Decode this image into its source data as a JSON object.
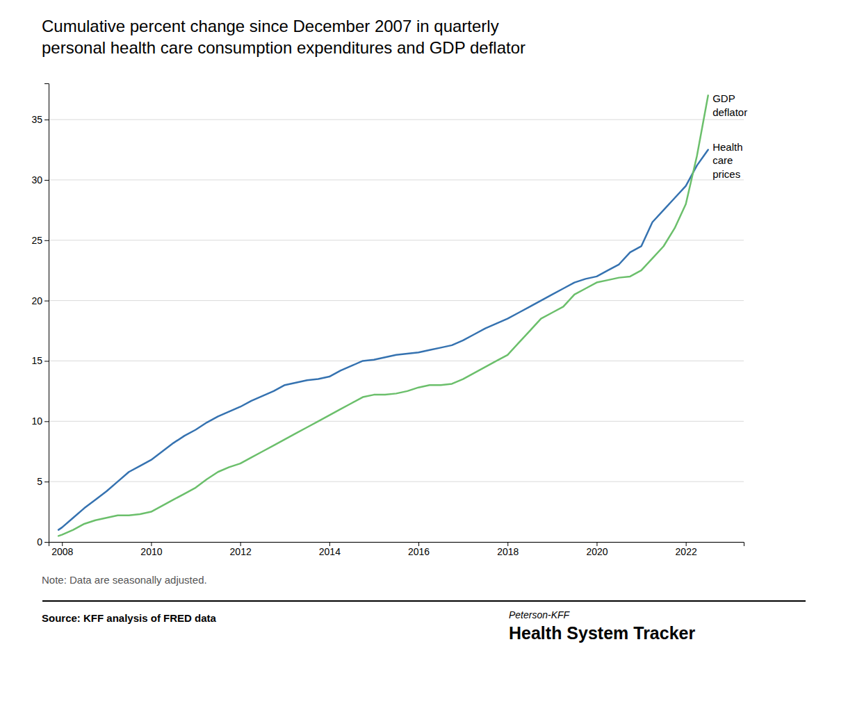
{
  "chart_data": {
    "type": "line",
    "title": "Cumulative percent change since December 2007 in quarterly\npersonal health care consumption expenditures and GDP deflator",
    "note": "Note: Data are seasonally adjusted.",
    "source": "Source: KFF analysis of FRED data",
    "branding": [
      "Peterson-KFF",
      "Health System Tracker"
    ],
    "annotations": [
      {
        "text": "GDP\ndeflator",
        "x": 2022.6,
        "y": 37.2
      },
      {
        "text": "Health\ncare\nprices",
        "x": 2022.6,
        "y": 33.2
      }
    ],
    "xlim": [
      2007.7,
      2023.3
    ],
    "xticks": [
      2008,
      2010,
      2012,
      2014,
      2016,
      2018,
      2020,
      2022
    ],
    "ylim": [
      0,
      38
    ],
    "yticks": [
      0,
      5,
      10,
      15,
      20,
      25,
      30,
      35
    ],
    "grid": true,
    "x": [
      2007.92,
      2008.0,
      2008.25,
      2008.5,
      2008.75,
      2009.0,
      2009.25,
      2009.5,
      2009.75,
      2010.0,
      2010.25,
      2010.5,
      2010.75,
      2011.0,
      2011.25,
      2011.5,
      2011.75,
      2012.0,
      2012.25,
      2012.5,
      2012.75,
      2013.0,
      2013.25,
      2013.5,
      2013.75,
      2014.0,
      2014.25,
      2014.5,
      2014.75,
      2015.0,
      2015.25,
      2015.5,
      2015.75,
      2016.0,
      2016.25,
      2016.5,
      2016.75,
      2017.0,
      2017.25,
      2017.5,
      2017.75,
      2018.0,
      2018.25,
      2018.5,
      2018.75,
      2019.0,
      2019.25,
      2019.5,
      2019.75,
      2020.0,
      2020.25,
      2020.5,
      2020.75,
      2021.0,
      2021.25,
      2021.5,
      2021.75,
      2022.0,
      2022.25,
      2022.5
    ],
    "series": [
      {
        "color": "#3572B0",
        "values": [
          1.0,
          1.2,
          2.0,
          2.8,
          3.5,
          4.2,
          5.0,
          5.8,
          6.3,
          6.8,
          7.5,
          8.2,
          8.8,
          9.3,
          9.9,
          10.4,
          10.8,
          11.2,
          11.7,
          12.1,
          12.5,
          13.0,
          13.2,
          13.4,
          13.5,
          13.7,
          14.2,
          14.6,
          15.0,
          15.1,
          15.3,
          15.5,
          15.6,
          15.7,
          15.9,
          16.1,
          16.3,
          16.7,
          17.2,
          17.7,
          18.1,
          18.5,
          19.0,
          19.5,
          20.0,
          20.5,
          21.0,
          21.5,
          21.8,
          22.0,
          22.5,
          23.0,
          24.0,
          24.5,
          26.5,
          27.5,
          28.5,
          29.5,
          31.2,
          32.5
        ]
      },
      {
        "color": "#6BBF6B",
        "values": [
          0.5,
          0.6,
          1.0,
          1.5,
          1.8,
          2.0,
          2.2,
          2.2,
          2.3,
          2.5,
          3.0,
          3.5,
          4.0,
          4.5,
          5.2,
          5.8,
          6.2,
          6.5,
          7.0,
          7.5,
          8.0,
          8.5,
          9.0,
          9.5,
          10.0,
          10.5,
          11.0,
          11.5,
          12.0,
          12.2,
          12.2,
          12.3,
          12.5,
          12.8,
          13.0,
          13.0,
          13.1,
          13.5,
          14.0,
          14.5,
          15.0,
          15.5,
          16.5,
          17.5,
          18.5,
          19.0,
          19.5,
          20.5,
          21.0,
          21.5,
          21.7,
          21.9,
          22.0,
          22.5,
          23.5,
          24.5,
          26.0,
          28.0,
          32.0,
          37.0
        ]
      }
    ]
  }
}
